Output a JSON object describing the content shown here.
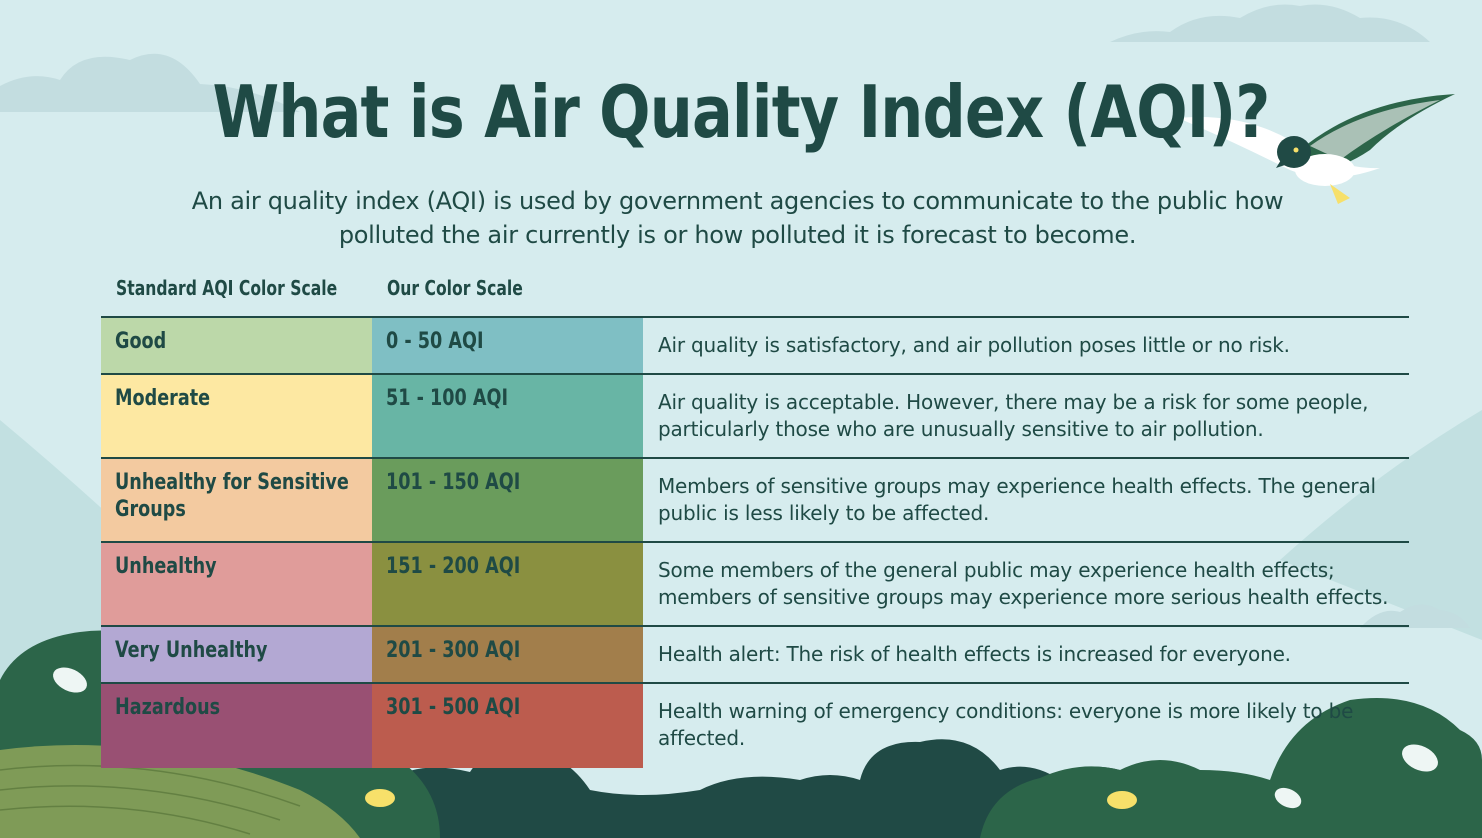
{
  "title": "What is Air Quality Index (AQI)?",
  "subtitle": "An air quality index (AQI) is used by government agencies to communicate to the public how polluted the air currently is or how polluted it is forecast to become.",
  "headers": {
    "standard": "Standard AQI Color Scale",
    "ours": "Our Color Scale"
  },
  "rows": [
    {
      "category": "Good",
      "range": "0 - 50 AQI",
      "description": "Air quality is satisfactory, and air pollution poses little or no risk.",
      "standard_color": "#bcd8a9",
      "our_color": "#7fbfc4"
    },
    {
      "category": "Moderate",
      "range": "51 - 100 AQI",
      "description": "Air quality is acceptable. However, there may be a risk for some people, particularly those who are unusually sensitive to air pollution.",
      "standard_color": "#fde8a2",
      "our_color": "#68b5a5"
    },
    {
      "category": "Unhealthy for Sensitive Groups",
      "range": "101 - 150 AQI",
      "description": "Members of sensitive groups may experience health effects. The general public is less likely to be affected.",
      "standard_color": "#f3caa0",
      "our_color": "#6a9c5c"
    },
    {
      "category": "Unhealthy",
      "range": "151 - 200 AQI",
      "description": "Some members of the general public may experience health effects; members of sensitive groups may experience more serious health effects.",
      "standard_color": "#e09c9a",
      "our_color": "#8a9040"
    },
    {
      "category": "Very Unhealthy",
      "range": "201 - 300 AQI",
      "description": "Health alert: The risk of health effects is increased for everyone.",
      "standard_color": "#b3a8d3",
      "our_color": "#a27e4b"
    },
    {
      "category": "Hazardous",
      "range": "301 - 500 AQI",
      "description": "Health warning of emergency conditions: everyone is more likely to be affected.",
      "standard_color": "#995073",
      "our_color": "#bc5c4e"
    }
  ],
  "icons": {
    "bird": "bird-illustration",
    "clouds": "cloud-shape",
    "bushes": "bush-shape"
  },
  "colors": {
    "text": "#1f4a45",
    "background": "#d6ecee",
    "rule": "#1f4a45"
  }
}
